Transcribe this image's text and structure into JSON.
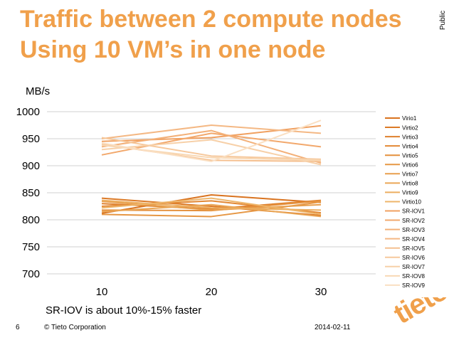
{
  "slide": {
    "title_line1": "Traffic between 2 compute nodes",
    "title_line2": "Using 10 VM’s in one node",
    "classification": "Public",
    "note": "SR-IOV is about 10%-15% faster",
    "page_number": "6",
    "corporation": "© Tieto Corporation",
    "date": "2014-02-11",
    "logo_text": "tieto",
    "accent_color": "#f0a04b"
  },
  "chart_data": {
    "type": "line",
    "title": "",
    "ylabel": "MB/s",
    "xlabel": "",
    "categories": [
      "10",
      "20",
      "30"
    ],
    "ylim": [
      700,
      1000
    ],
    "yticks": [
      700,
      750,
      800,
      850,
      900,
      950,
      1000
    ],
    "grid": true,
    "legend_position": "right",
    "series": [
      {
        "name": "Virio1",
        "values": [
          812,
          846,
          832
        ],
        "color": "#d9731f"
      },
      {
        "name": "Virtio2",
        "values": [
          840,
          825,
          808
        ],
        "color": "#dc7a26"
      },
      {
        "name": "Virtio3",
        "values": [
          830,
          820,
          836
        ],
        "color": "#df812d"
      },
      {
        "name": "Virtio4",
        "values": [
          825,
          835,
          813
        ],
        "color": "#e28834"
      },
      {
        "name": "Virtio5",
        "values": [
          818,
          817,
          835
        ],
        "color": "#e4903c"
      },
      {
        "name": "Virtio6",
        "values": [
          810,
          806,
          833
        ],
        "color": "#e69744"
      },
      {
        "name": "Virtio7",
        "values": [
          834,
          818,
          828
        ],
        "color": "#e89f4d"
      },
      {
        "name": "Virtio8",
        "values": [
          815,
          828,
          806
        ],
        "color": "#eaa656"
      },
      {
        "name": "Virtio9",
        "values": [
          836,
          822,
          818
        ],
        "color": "#ecae60"
      },
      {
        "name": "Virtio10",
        "values": [
          822,
          840,
          810
        ],
        "color": "#eeb56a"
      },
      {
        "name": "SR-IOV1",
        "values": [
          945,
          952,
          974
        ],
        "color": "#f0a060"
      },
      {
        "name": "SR-IOV2",
        "values": [
          920,
          960,
          935
        ],
        "color": "#f2a86c"
      },
      {
        "name": "SR-IOV3",
        "values": [
          935,
          965,
          905
        ],
        "color": "#f3b078"
      },
      {
        "name": "SR-IOV4",
        "values": [
          950,
          975,
          960
        ],
        "color": "#f4b884"
      },
      {
        "name": "SR-IOV5",
        "values": [
          940,
          910,
          908
        ],
        "color": "#f5c090"
      },
      {
        "name": "SR-IOV6",
        "values": [
          952,
          918,
          912
        ],
        "color": "#f6c89c"
      },
      {
        "name": "SR-IOV7",
        "values": [
          930,
          948,
          902
        ],
        "color": "#f7d0a8"
      },
      {
        "name": "SR-IOV8",
        "values": [
          938,
          915,
          910
        ],
        "color": "#f8d8b4"
      },
      {
        "name": "SR-IOV9",
        "values": [
          942,
          908,
          984
        ],
        "color": "#fadfc2"
      }
    ]
  }
}
